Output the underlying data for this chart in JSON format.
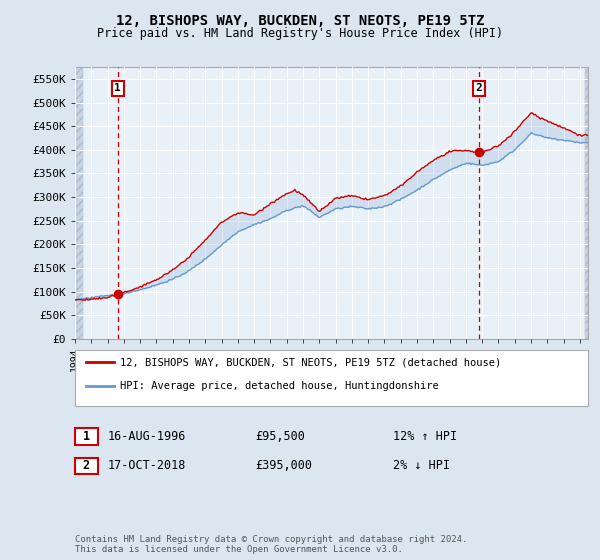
{
  "title": "12, BISHOPS WAY, BUCKDEN, ST NEOTS, PE19 5TZ",
  "subtitle": "Price paid vs. HM Land Registry's House Price Index (HPI)",
  "ylabel_ticks": [
    "£0",
    "£50K",
    "£100K",
    "£150K",
    "£200K",
    "£250K",
    "£300K",
    "£350K",
    "£400K",
    "£450K",
    "£500K",
    "£550K"
  ],
  "ytick_values": [
    0,
    50000,
    100000,
    150000,
    200000,
    250000,
    300000,
    350000,
    400000,
    450000,
    500000,
    550000
  ],
  "ylim": [
    0,
    575000
  ],
  "sale1_date": "16-AUG-1996",
  "sale1_price": 95500,
  "sale1_hpi_pct": "12% ↑ HPI",
  "sale1_label": "1",
  "sale1_year": 1996.62,
  "sale2_date": "17-OCT-2018",
  "sale2_price": 395000,
  "sale2_hpi_pct": "2% ↓ HPI",
  "sale2_label": "2",
  "sale2_year": 2018.79,
  "legend_line1": "12, BISHOPS WAY, BUCKDEN, ST NEOTS, PE19 5TZ (detached house)",
  "legend_line2": "HPI: Average price, detached house, Huntingdonshire",
  "footer": "Contains HM Land Registry data © Crown copyright and database right 2024.\nThis data is licensed under the Open Government Licence v3.0.",
  "price_line_color": "#cc0000",
  "hpi_line_color": "#6699cc",
  "background_color": "#dce6f1",
  "plot_bg_color": "#e8f0f8",
  "grid_color": "#ffffff",
  "sale_marker_color": "#cc0000",
  "annotation_box_color": "#cc0000",
  "xmin": 1994,
  "xmax": 2025.5
}
